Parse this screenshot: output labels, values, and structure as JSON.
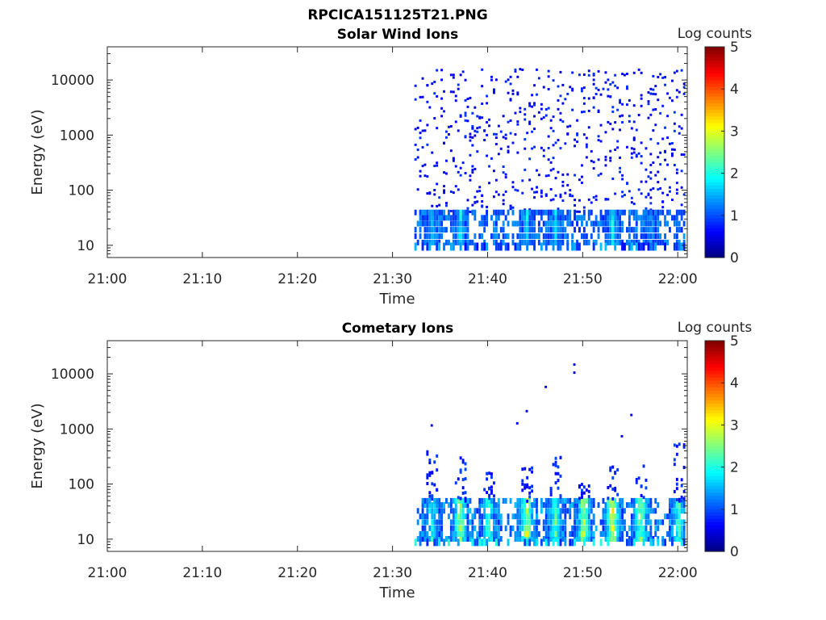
{
  "figure": {
    "title": "RPCICA151125T21.PNG"
  },
  "chart_data": [
    {
      "type": "heatmap",
      "title": "Solar Wind Ions",
      "xlabel": "Time",
      "ylabel": "Energy (eV)",
      "x_ticks": [
        "21:00",
        "21:10",
        "21:20",
        "21:30",
        "21:40",
        "21:50",
        "22:00"
      ],
      "x_range": [
        "21:00",
        "22:01"
      ],
      "y_scale": "log",
      "y_ticks": [
        10,
        100,
        1000,
        10000
      ],
      "y_tick_labels": [
        "10",
        "100",
        "1000",
        "10000"
      ],
      "ylim": [
        6,
        40000
      ],
      "colorbar": {
        "label": "Log counts",
        "ticks": [
          "0",
          "1",
          "2",
          "3",
          "4",
          "5"
        ],
        "range": [
          0,
          5
        ],
        "colormap": "jet"
      },
      "data_start": "21:32",
      "bands": [
        {
          "energy_range": [
            6,
            9
          ],
          "log_counts": 1.0,
          "note": "dense dark-blue low-energy band"
        },
        {
          "energy_range": [
            9,
            38
          ],
          "log_counts": 1.5,
          "note": "intermittent blue-cyan band, peaks ~2 near 21:37, 21:44, 21:47, 21:53"
        },
        {
          "energy_range": [
            38,
            15000
          ],
          "log_counts": 0.1,
          "note": "sparse scattered single counts"
        }
      ],
      "peaks": [
        {
          "time": "21:34",
          "energy": 15,
          "log_counts": 1.8
        },
        {
          "time": "21:37",
          "energy": 15,
          "log_counts": 2.3
        },
        {
          "time": "21:44",
          "energy": 25,
          "log_counts": 2.1
        },
        {
          "time": "21:47",
          "energy": 25,
          "log_counts": 2.0
        },
        {
          "time": "21:53",
          "energy": 15,
          "log_counts": 2.2
        },
        {
          "time": "21:57",
          "energy": 15,
          "log_counts": 1.6
        }
      ]
    },
    {
      "type": "heatmap",
      "title": "Cometary Ions",
      "xlabel": "Time",
      "ylabel": "Energy (eV)",
      "x_ticks": [
        "21:00",
        "21:10",
        "21:20",
        "21:30",
        "21:40",
        "21:50",
        "22:00"
      ],
      "x_range": [
        "21:00",
        "22:01"
      ],
      "y_scale": "log",
      "y_ticks": [
        10,
        100,
        1000,
        10000
      ],
      "y_tick_labels": [
        "10",
        "100",
        "1000",
        "10000"
      ],
      "ylim": [
        6,
        40000
      ],
      "colorbar": {
        "label": "Log counts",
        "ticks": [
          "0",
          "1",
          "2",
          "3",
          "4",
          "5"
        ],
        "range": [
          0,
          5
        ],
        "colormap": "jet"
      },
      "data_start": "21:32",
      "bursts": [
        {
          "time": "21:34",
          "max_energy": 400,
          "peak_energy": 20,
          "log_counts": 2.2
        },
        {
          "time": "21:37",
          "max_energy": 300,
          "peak_energy": 15,
          "log_counts": 3.0
        },
        {
          "time": "21:40",
          "max_energy": 150,
          "peak_energy": 25,
          "log_counts": 2.4
        },
        {
          "time": "21:44",
          "max_energy": 200,
          "peak_energy": 25,
          "log_counts": 3.2
        },
        {
          "time": "21:47",
          "max_energy": 300,
          "peak_energy": 20,
          "log_counts": 2.6
        },
        {
          "time": "21:50",
          "max_energy": 100,
          "peak_energy": 15,
          "log_counts": 3.1
        },
        {
          "time": "21:53",
          "max_energy": 200,
          "peak_energy": 15,
          "log_counts": 3.4
        },
        {
          "time": "21:56",
          "max_energy": 250,
          "peak_energy": 15,
          "log_counts": 2.9
        },
        {
          "time": "22:00",
          "max_energy": 500,
          "peak_energy": 20,
          "log_counts": 2.5
        }
      ],
      "isolated_points": [
        {
          "time": "21:49",
          "energy": 14000
        },
        {
          "time": "21:49",
          "energy": 10000
        },
        {
          "time": "21:46",
          "energy": 5500
        },
        {
          "time": "21:44",
          "energy": 2000
        },
        {
          "time": "21:43",
          "energy": 1200
        },
        {
          "time": "21:34",
          "energy": 1100
        },
        {
          "time": "21:55",
          "energy": 1700
        },
        {
          "time": "21:54",
          "energy": 700
        }
      ]
    }
  ]
}
